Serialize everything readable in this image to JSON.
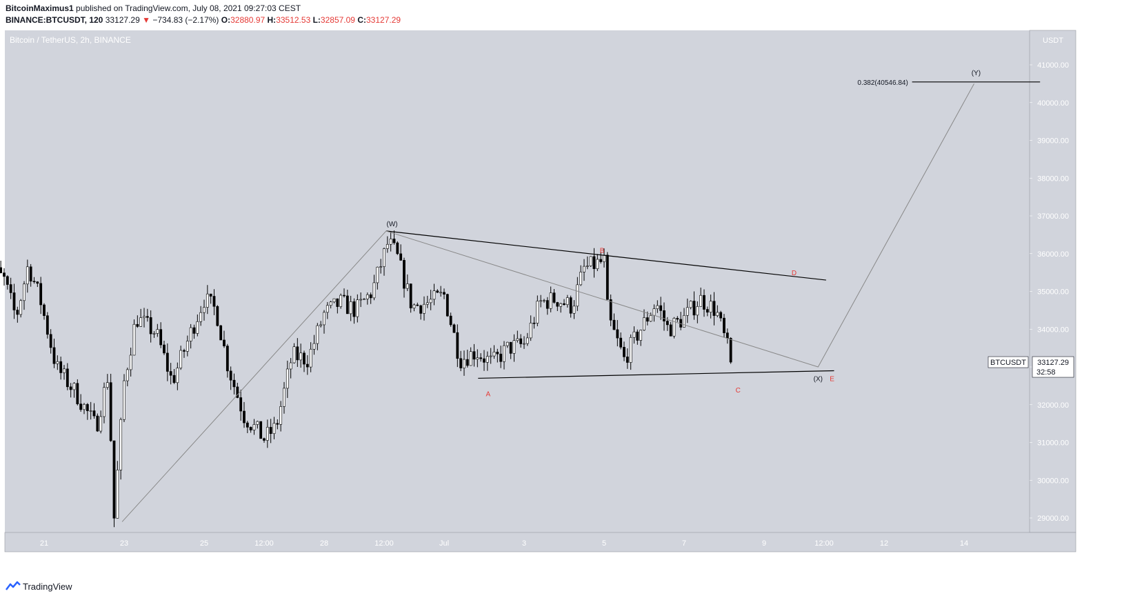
{
  "header": {
    "author": "BitcoinMaximus1",
    "published": "published on TradingView.com, July 08, 2021 09:27:03 CEST",
    "symbol": "BINANCE:BTCUSDT, 120",
    "last": "33127.29",
    "arrow": "▼",
    "change": "−734.83 (−2.17%)",
    "o_label": "O:",
    "o": "32880.97",
    "h_label": "H:",
    "h": "33512.53",
    "l_label": "L:",
    "l": "32857.09",
    "c_label": "C:",
    "c": "33127.29"
  },
  "footer": {
    "brand": "TradingView"
  },
  "colors": {
    "pane": "#d1d4dc",
    "up": "#ffffff",
    "down": "#000000",
    "accent": "#e53935"
  },
  "chart_data": {
    "type": "candlestick",
    "title": "Bitcoin / TetherUS, 2h, BINANCE",
    "currency": "USDT",
    "x_unit": "days since Jun 20, 2021",
    "xlim": [
      19.5,
      45.9
    ],
    "ylim": [
      28600,
      42000
    ],
    "y_ticks": [
      29000,
      30000,
      31000,
      32000,
      33000,
      34000,
      35000,
      36000,
      37000,
      38000,
      39000,
      40000,
      41000
    ],
    "x_ticks": [
      {
        "x": 21,
        "label": "21"
      },
      {
        "x": 23,
        "label": "23"
      },
      {
        "x": 25,
        "label": "25"
      },
      {
        "x": 26.5,
        "label": "12:00"
      },
      {
        "x": 28,
        "label": "28"
      },
      {
        "x": 29.5,
        "label": "12:00"
      },
      {
        "x": 31,
        "label": "Jul"
      },
      {
        "x": 33,
        "label": "3"
      },
      {
        "x": 35,
        "label": "5"
      },
      {
        "x": 37,
        "label": "7"
      },
      {
        "x": 39,
        "label": "9"
      },
      {
        "x": 40.5,
        "label": "12:00"
      },
      {
        "x": 42,
        "label": "12"
      },
      {
        "x": 44,
        "label": "14"
      }
    ],
    "price_path": [
      [
        19.5,
        35800
      ],
      [
        20.0,
        35300
      ],
      [
        20.3,
        34300
      ],
      [
        20.6,
        35700
      ],
      [
        20.9,
        34800
      ],
      [
        21.3,
        33000
      ],
      [
        21.8,
        32300
      ],
      [
        22.3,
        31400
      ],
      [
        22.6,
        32800
      ],
      [
        22.75,
        29000
      ],
      [
        23.0,
        32600
      ],
      [
        23.3,
        34300
      ],
      [
        23.8,
        33900
      ],
      [
        24.2,
        32600
      ],
      [
        24.7,
        34000
      ],
      [
        25.0,
        34800
      ],
      [
        25.3,
        34500
      ],
      [
        25.6,
        33000
      ],
      [
        26.0,
        31700
      ],
      [
        26.5,
        31100
      ],
      [
        26.8,
        31400
      ],
      [
        27.2,
        33300
      ],
      [
        27.6,
        33200
      ],
      [
        28.0,
        34400
      ],
      [
        28.4,
        34700
      ],
      [
        28.8,
        34500
      ],
      [
        29.2,
        35000
      ],
      [
        29.6,
        36300
      ],
      [
        29.8,
        36000
      ],
      [
        30.2,
        34600
      ],
      [
        30.6,
        34700
      ],
      [
        31.0,
        34900
      ],
      [
        31.4,
        33200
      ],
      [
        31.8,
        33400
      ],
      [
        32.2,
        33100
      ],
      [
        32.6,
        33500
      ],
      [
        33.0,
        33600
      ],
      [
        33.4,
        34700
      ],
      [
        33.8,
        34800
      ],
      [
        34.2,
        34600
      ],
      [
        34.5,
        35600
      ],
      [
        35.0,
        35800
      ],
      [
        35.1,
        34300
      ],
      [
        35.5,
        33200
      ],
      [
        35.8,
        33800
      ],
      [
        36.3,
        34700
      ],
      [
        36.6,
        34000
      ],
      [
        37.0,
        34300
      ],
      [
        37.4,
        34800
      ],
      [
        37.8,
        34500
      ],
      [
        38.0,
        33800
      ],
      [
        38.2,
        33100
      ]
    ],
    "last_price": 33127.29,
    "last_price_label": "33127.29",
    "symbol_tag": "BTCUSDT",
    "countdown": "32:58",
    "lines": [
      {
        "name": "upper-trendline",
        "color": "#000000",
        "width": 1.2,
        "points": [
          [
            29.55,
            36600
          ],
          [
            40.55,
            35300
          ]
        ]
      },
      {
        "name": "lower-trendline",
        "color": "#000000",
        "width": 1.2,
        "points": [
          [
            31.85,
            32700
          ],
          [
            40.75,
            32900
          ]
        ]
      },
      {
        "name": "projection-path",
        "color": "#888888",
        "width": 1,
        "points": [
          [
            22.95,
            28900
          ],
          [
            29.55,
            36600
          ],
          [
            40.35,
            33000
          ],
          [
            44.25,
            40500
          ]
        ]
      },
      {
        "name": "fib-level",
        "color": "#000000",
        "width": 1.2,
        "points": [
          [
            42.7,
            40546.84
          ],
          [
            45.9,
            40546.84
          ]
        ]
      }
    ],
    "annotations": [
      {
        "text": "(W)",
        "x": 29.7,
        "y": 36800,
        "color": "#131722"
      },
      {
        "text": "A",
        "x": 32.1,
        "y": 32300,
        "color": "#e53935"
      },
      {
        "text": "B",
        "x": 34.95,
        "y": 36100,
        "color": "#e53935"
      },
      {
        "text": "C",
        "x": 38.35,
        "y": 32400,
        "color": "#e53935"
      },
      {
        "text": "D",
        "x": 39.75,
        "y": 35500,
        "color": "#e53935"
      },
      {
        "text": "(X)",
        "x": 40.35,
        "y": 32700,
        "color": "#131722"
      },
      {
        "text": "E",
        "x": 40.7,
        "y": 32700,
        "color": "#e53935"
      },
      {
        "text": "(Y)",
        "x": 44.3,
        "y": 40800,
        "color": "#131722"
      },
      {
        "text": "0.382(40546.84)",
        "x": 42.6,
        "y": 40546.84,
        "color": "#131722",
        "anchor": "end"
      }
    ]
  }
}
